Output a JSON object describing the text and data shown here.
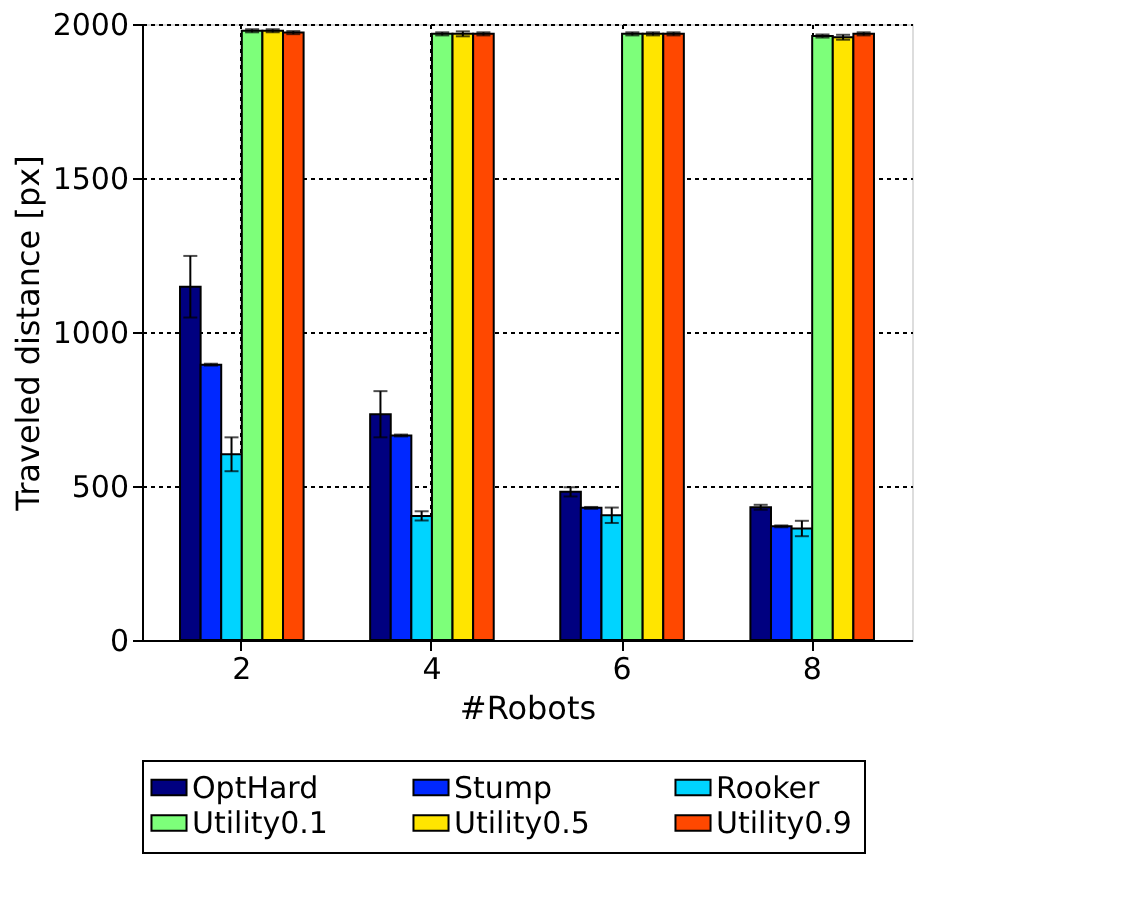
{
  "chart_data": {
    "type": "bar",
    "xlabel": "#Robots",
    "ylabel": "Traveled distance [px]",
    "categories": [
      "2",
      "4",
      "6",
      "8"
    ],
    "series": [
      {
        "name": "OptHard",
        "color": "#000080",
        "values": [
          1147,
          733,
          481,
          431
        ],
        "errors": [
          100,
          75,
          15,
          8
        ]
      },
      {
        "name": "Stump",
        "color": "#0028ff",
        "values": [
          894,
          664,
          429,
          369
        ],
        "errors": [
          3,
          3,
          3,
          3
        ]
      },
      {
        "name": "Rooker",
        "color": "#00d4ff",
        "values": [
          603,
          403,
          405,
          362
        ],
        "errors": [
          55,
          15,
          25,
          25
        ]
      },
      {
        "name": "Utility0.1",
        "color": "#7dff7a",
        "values": [
          1978,
          1968,
          1968,
          1961
        ],
        "errors": [
          5,
          5,
          5,
          5
        ]
      },
      {
        "name": "Utility0.5",
        "color": "#ffe500",
        "values": [
          1978,
          1968,
          1968,
          1957
        ],
        "errors": [
          5,
          8,
          5,
          8
        ]
      },
      {
        "name": "Utility0.9",
        "color": "#ff4800",
        "values": [
          1972,
          1968,
          1968,
          1968
        ],
        "errors": [
          5,
          5,
          5,
          5
        ]
      }
    ],
    "ylim": [
      0,
      2000
    ],
    "yticks": [
      0,
      500,
      1000,
      1500,
      2000
    ],
    "grid": true,
    "legend": "bottom"
  }
}
